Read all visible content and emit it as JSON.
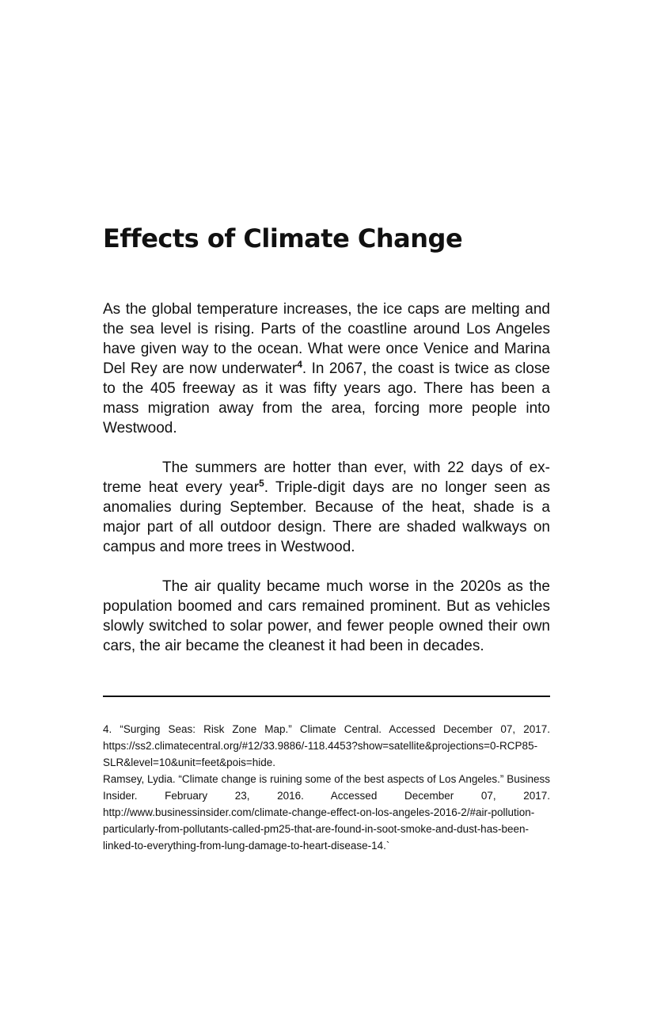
{
  "title": "Effects of Climate Change",
  "paragraphs": [
    {
      "before": "As the global temperature increases, the ice caps are melting and the sea level is rising. Parts of the coastline around Los An­geles have given way to the ocean. What were once Venice and Marina Del Rey are now underwater",
      "ref": "4",
      "after": ". In 2067, the coast is twice as close to the 405 freeway as it was fifty years ago. There has been a mass migration away from the area, forcing more people into Westwood."
    },
    {
      "before": "The summers are hotter than ever, with 22 days of ex­treme heat every year",
      "ref": "5",
      "after": ". Triple-digit days are no longer seen as anomalies during September. Because of the heat, shade is a major part of all outdoor design. There are shaded walkways on campus and more trees in Westwood."
    },
    {
      "text": "The air quality became much worse in the 2020s as the population boomed and cars remained prominent. But as ve­hicles slowly switched to solar power, and fewer people owned their own cars, the air became the cleanest it had been in de­cades."
    }
  ],
  "footnotes": [
    "4. “Surging Seas: Risk Zone Map.” Climate Central. Accessed December 07, 2017. https://ss2.climatecentral.org/#12/33.9886/-118.4453?show=satellite&projec­tions=0-RCP85-SLR&level=10&unit=feet&pois=hide.",
    "Ramsey, Lydia. “Climate change is ruining some of the best aspects of Los Angeles.” Business Insider. February 23, 2016. Accessed December 07, 2017. http://www.businessinsider.com/climate-change-effect-on-los-angeles-2016-2/#air-pollution-particularly-from-pol­lutants-called-pm25-that-are-found-in-soot-smoke-and-dust-has-been-linked-to-every­thing-from-lung-damage-to-heart-disease-14.`"
  ]
}
